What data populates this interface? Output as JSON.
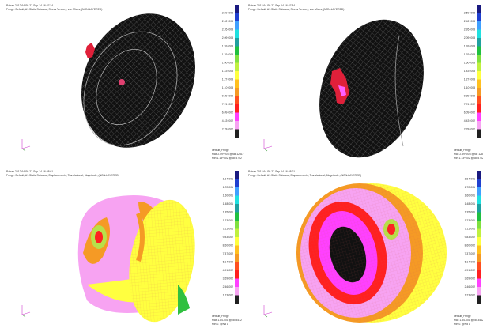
{
  "panels": [
    {
      "header": [
        "Patran 2012 64-Bit 27-Sep-14 16:57:34",
        "Fringe: Default, A1:Static Subcase, Stress Tensor, , von Mises, (NON-LAYERED)"
      ],
      "legend": [
        "2.59+003",
        "2.42+003",
        "2.26+003",
        "2.09+003",
        "1.93+003",
        "1.76+003",
        "1.60+003",
        "1.43+003",
        "1.27+003",
        "1.10+003",
        "9.39+002",
        "7.74+002",
        "6.09+002",
        "4.43+002",
        "2.78+002"
      ],
      "fringe": "default_Fringe",
      "max": "Max 2.59+003 @Nd 12817",
      "min": "Min 1.13+002 @Nd 5702"
    },
    {
      "header": [
        "Patran 2012 64-Bit 27-Sep-14 16:57:34",
        "Fringe: Default, A1:Static Subcase, Stress Tensor, , von Mises, (NON-LAYERED)"
      ],
      "legend": [
        "2.59+003",
        "2.42+003",
        "2.26+003",
        "2.09+003",
        "1.93+003",
        "1.76+003",
        "1.60+003",
        "1.43+003",
        "1.27+003",
        "1.10+003",
        "9.39+002",
        "7.74+002",
        "6.09+002",
        "4.43+002",
        "2.78+002"
      ],
      "fringe": "default_Fringe",
      "max": "Max 2.59+003 @Nd 12817",
      "min": "Min 1.13+002 @Nd 5702"
    },
    {
      "header": [
        "Patran 2012 64-Bit 27-Sep-14 16:58:01",
        "Fringe: Default, A1:Static Subcase, Displacements, Translational, Magnitude, (NON-LAYERED)"
      ],
      "legend": [
        "1.84-001",
        "1.72-001",
        "1.60-001",
        "1.48-001",
        "1.35-001",
        "1.23-001",
        "1.11-001",
        "9.83-002",
        "8.60-002",
        "7.37-002",
        "6.14-002",
        "4.91-002",
        "3.69-002",
        "2.46-002",
        "1.23-002"
      ],
      "fringe": "default_Fringe",
      "max": "Max 1.84-001 @Nd 3412",
      "min": "Min 0. @Nd 1"
    },
    {
      "header": [
        "Patran 2012 64-Bit 27-Sep-14 16:58:01",
        "Fringe: Default, A1:Static Subcase, Displacements, Translational, Magnitude, (NON-LAYERED)"
      ],
      "legend": [
        "1.84-001",
        "1.72-001",
        "1.60-001",
        "1.48-001",
        "1.35-001",
        "1.23-001",
        "1.11-001",
        "9.83-002",
        "8.60-002",
        "7.37-002",
        "6.14-002",
        "4.91-002",
        "3.69-002",
        "2.46-002",
        "1.23-002"
      ],
      "fringe": "default_Fringe",
      "max": "Max 1.84-001 @Nd 3412",
      "min": "Min 0. @Nd 1"
    }
  ]
}
